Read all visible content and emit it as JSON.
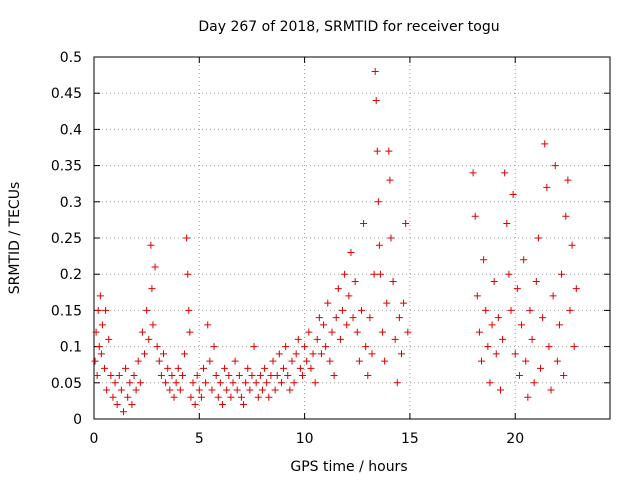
{
  "chart_data": {
    "type": "scatter",
    "title": "Day 267 of 2018, SRMTID for receiver togu",
    "xlabel": "GPS time / hours",
    "ylabel": "SRMTID / TECUs",
    "xlim": [
      0,
      24.5
    ],
    "ylim": [
      0,
      0.5
    ],
    "xticks": [
      "0",
      "5",
      "10",
      "15",
      "20"
    ],
    "yticks": [
      "0",
      "0.05",
      "0.1",
      "0.15",
      "0.2",
      "0.25",
      "0.3",
      "0.35",
      "0.4",
      "0.45",
      "0.5"
    ],
    "grid": true,
    "marker": "+",
    "color": "#e00000",
    "series": [
      {
        "name": "SRMTID",
        "points": [
          [
            0.05,
            0.08
          ],
          [
            0.1,
            0.12
          ],
          [
            0.15,
            0.06
          ],
          [
            0.2,
            0.15
          ],
          [
            0.25,
            0.1
          ],
          [
            0.3,
            0.17
          ],
          [
            0.35,
            0.09
          ],
          [
            0.4,
            0.13
          ],
          [
            0.5,
            0.07
          ],
          [
            0.55,
            0.15
          ],
          [
            0.6,
            0.04
          ],
          [
            0.7,
            0.11
          ],
          [
            0.8,
            0.06
          ],
          [
            0.9,
            0.03
          ],
          [
            1.0,
            0.05
          ],
          [
            1.1,
            0.02
          ],
          [
            1.2,
            0.06
          ],
          [
            1.3,
            0.04
          ],
          [
            1.4,
            0.01
          ],
          [
            1.5,
            0.07
          ],
          [
            1.6,
            0.03
          ],
          [
            1.7,
            0.05
          ],
          [
            1.8,
            0.02
          ],
          [
            1.9,
            0.06
          ],
          [
            2.0,
            0.04
          ],
          [
            2.1,
            0.08
          ],
          [
            2.2,
            0.05
          ],
          [
            2.3,
            0.12
          ],
          [
            2.4,
            0.09
          ],
          [
            2.5,
            0.15
          ],
          [
            2.6,
            0.11
          ],
          [
            2.7,
            0.24
          ],
          [
            2.75,
            0.18
          ],
          [
            2.8,
            0.13
          ],
          [
            2.9,
            0.21
          ],
          [
            3.0,
            0.1
          ],
          [
            3.1,
            0.08
          ],
          [
            3.2,
            0.06
          ],
          [
            3.3,
            0.09
          ],
          [
            3.4,
            0.05
          ],
          [
            3.5,
            0.07
          ],
          [
            3.6,
            0.04
          ],
          [
            3.7,
            0.06
          ],
          [
            3.8,
            0.03
          ],
          [
            3.9,
            0.05
          ],
          [
            4.0,
            0.07
          ],
          [
            4.1,
            0.04
          ],
          [
            4.2,
            0.06
          ],
          [
            4.3,
            0.09
          ],
          [
            4.4,
            0.25
          ],
          [
            4.45,
            0.2
          ],
          [
            4.5,
            0.15
          ],
          [
            4.55,
            0.12
          ],
          [
            4.6,
            0.03
          ],
          [
            4.7,
            0.05
          ],
          [
            4.8,
            0.02
          ],
          [
            4.9,
            0.06
          ],
          [
            5.0,
            0.04
          ],
          [
            5.1,
            0.03
          ],
          [
            5.2,
            0.07
          ],
          [
            5.3,
            0.05
          ],
          [
            5.4,
            0.13
          ],
          [
            5.5,
            0.08
          ],
          [
            5.6,
            0.04
          ],
          [
            5.7,
            0.1
          ],
          [
            5.8,
            0.06
          ],
          [
            5.9,
            0.03
          ],
          [
            6.0,
            0.05
          ],
          [
            6.1,
            0.02
          ],
          [
            6.2,
            0.07
          ],
          [
            6.3,
            0.04
          ],
          [
            6.4,
            0.06
          ],
          [
            6.5,
            0.03
          ],
          [
            6.6,
            0.05
          ],
          [
            6.7,
            0.08
          ],
          [
            6.8,
            0.04
          ],
          [
            6.9,
            0.06
          ],
          [
            7.0,
            0.03
          ],
          [
            7.1,
            0.02
          ],
          [
            7.2,
            0.05
          ],
          [
            7.3,
            0.07
          ],
          [
            7.4,
            0.04
          ],
          [
            7.5,
            0.06
          ],
          [
            7.6,
            0.1
          ],
          [
            7.7,
            0.05
          ],
          [
            7.8,
            0.03
          ],
          [
            7.9,
            0.06
          ],
          [
            8.0,
            0.04
          ],
          [
            8.1,
            0.07
          ],
          [
            8.2,
            0.05
          ],
          [
            8.3,
            0.03
          ],
          [
            8.4,
            0.06
          ],
          [
            8.5,
            0.08
          ],
          [
            8.6,
            0.04
          ],
          [
            8.7,
            0.06
          ],
          [
            8.8,
            0.09
          ],
          [
            8.9,
            0.05
          ],
          [
            9.0,
            0.07
          ],
          [
            9.1,
            0.1
          ],
          [
            9.2,
            0.06
          ],
          [
            9.3,
            0.04
          ],
          [
            9.4,
            0.08
          ],
          [
            9.5,
            0.05
          ],
          [
            9.6,
            0.09
          ],
          [
            9.7,
            0.11
          ],
          [
            9.8,
            0.07
          ],
          [
            9.9,
            0.06
          ],
          [
            10.0,
            0.1
          ],
          [
            10.1,
            0.08
          ],
          [
            10.2,
            0.12
          ],
          [
            10.3,
            0.07
          ],
          [
            10.4,
            0.09
          ],
          [
            10.5,
            0.05
          ],
          [
            10.6,
            0.11
          ],
          [
            10.7,
            0.14
          ],
          [
            10.8,
            0.09
          ],
          [
            10.9,
            0.13
          ],
          [
            11.0,
            0.1
          ],
          [
            11.1,
            0.16
          ],
          [
            11.2,
            0.08
          ],
          [
            11.3,
            0.12
          ],
          [
            11.4,
            0.06
          ],
          [
            11.5,
            0.14
          ],
          [
            11.6,
            0.18
          ],
          [
            11.7,
            0.11
          ],
          [
            11.8,
            0.15
          ],
          [
            11.9,
            0.2
          ],
          [
            12.0,
            0.13
          ],
          [
            12.1,
            0.17
          ],
          [
            12.2,
            0.23
          ],
          [
            12.3,
            0.14
          ],
          [
            12.4,
            0.19
          ],
          [
            12.5,
            0.12
          ],
          [
            12.6,
            0.08
          ],
          [
            12.7,
            0.15
          ],
          [
            12.8,
            0.27
          ],
          [
            12.9,
            0.1
          ],
          [
            13.0,
            0.06
          ],
          [
            13.1,
            0.14
          ],
          [
            13.2,
            0.09
          ],
          [
            13.3,
            0.2
          ],
          [
            13.35,
            0.48
          ],
          [
            13.4,
            0.44
          ],
          [
            13.45,
            0.37
          ],
          [
            13.5,
            0.3
          ],
          [
            13.55,
            0.24
          ],
          [
            13.6,
            0.2
          ],
          [
            13.7,
            0.12
          ],
          [
            13.8,
            0.08
          ],
          [
            13.9,
            0.16
          ],
          [
            14.0,
            0.37
          ],
          [
            14.05,
            0.33
          ],
          [
            14.1,
            0.25
          ],
          [
            14.2,
            0.19
          ],
          [
            14.3,
            0.11
          ],
          [
            14.4,
            0.05
          ],
          [
            14.5,
            0.14
          ],
          [
            14.6,
            0.09
          ],
          [
            14.7,
            0.16
          ],
          [
            14.8,
            0.27
          ],
          [
            14.9,
            0.12
          ],
          [
            18.0,
            0.34
          ],
          [
            18.1,
            0.28
          ],
          [
            18.2,
            0.17
          ],
          [
            18.3,
            0.12
          ],
          [
            18.4,
            0.08
          ],
          [
            18.5,
            0.22
          ],
          [
            18.6,
            0.15
          ],
          [
            18.7,
            0.1
          ],
          [
            18.8,
            0.05
          ],
          [
            18.9,
            0.13
          ],
          [
            19.0,
            0.19
          ],
          [
            19.1,
            0.09
          ],
          [
            19.2,
            0.14
          ],
          [
            19.3,
            0.04
          ],
          [
            19.4,
            0.11
          ],
          [
            19.5,
            0.34
          ],
          [
            19.6,
            0.27
          ],
          [
            19.7,
            0.2
          ],
          [
            19.8,
            0.15
          ],
          [
            19.9,
            0.31
          ],
          [
            20.0,
            0.09
          ],
          [
            20.1,
            0.18
          ],
          [
            20.2,
            0.06
          ],
          [
            20.3,
            0.13
          ],
          [
            20.4,
            0.22
          ],
          [
            20.5,
            0.08
          ],
          [
            20.6,
            0.03
          ],
          [
            20.7,
            0.15
          ],
          [
            20.8,
            0.11
          ],
          [
            20.9,
            0.05
          ],
          [
            21.0,
            0.19
          ],
          [
            21.1,
            0.25
          ],
          [
            21.2,
            0.07
          ],
          [
            21.3,
            0.14
          ],
          [
            21.4,
            0.38
          ],
          [
            21.5,
            0.32
          ],
          [
            21.6,
            0.1
          ],
          [
            21.7,
            0.04
          ],
          [
            21.8,
            0.17
          ],
          [
            21.9,
            0.35
          ],
          [
            22.0,
            0.08
          ],
          [
            22.1,
            0.13
          ],
          [
            22.2,
            0.2
          ],
          [
            22.3,
            0.06
          ],
          [
            22.4,
            0.28
          ],
          [
            22.5,
            0.33
          ],
          [
            22.6,
            0.15
          ],
          [
            22.7,
            0.24
          ],
          [
            22.8,
            0.1
          ],
          [
            22.9,
            0.18
          ]
        ]
      }
    ]
  }
}
